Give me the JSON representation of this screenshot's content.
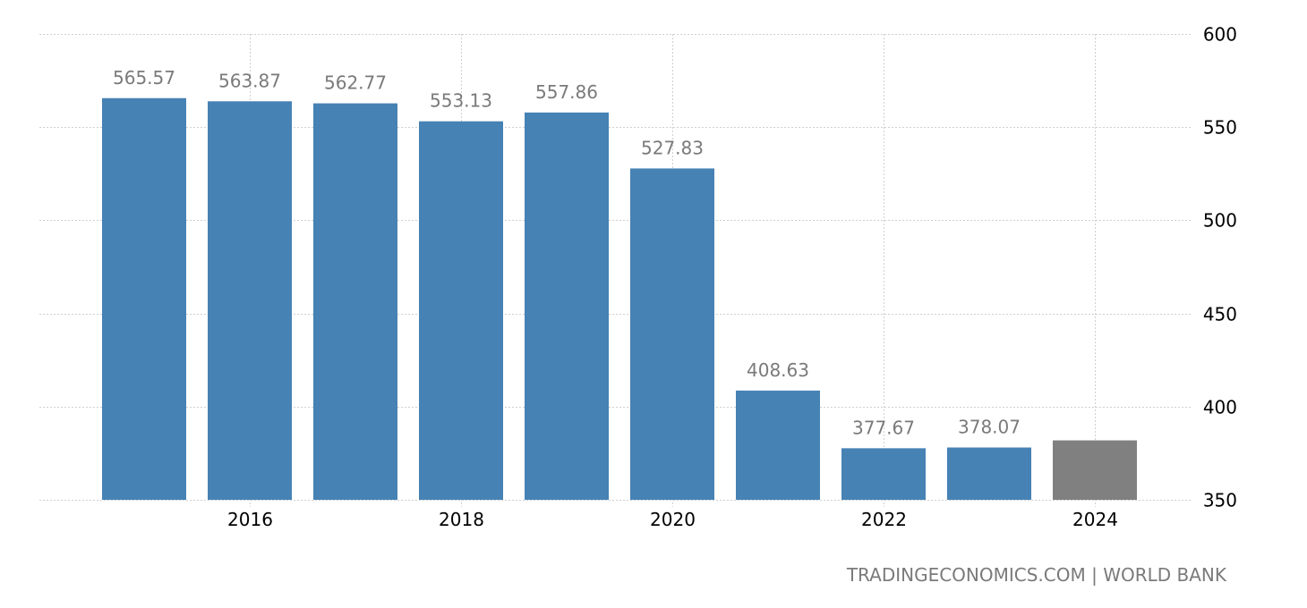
{
  "chart_data": {
    "type": "bar",
    "categories": [
      "2015",
      "2016",
      "2017",
      "2018",
      "2019",
      "2020",
      "2021",
      "2022",
      "2023",
      "2024"
    ],
    "values": [
      565.57,
      563.87,
      562.77,
      553.13,
      557.86,
      527.83,
      408.63,
      377.67,
      378.07,
      381.9
    ],
    "data_labels": [
      "565.57",
      "563.87",
      "562.77",
      "553.13",
      "557.86",
      "527.83",
      "408.63",
      "377.67",
      "378.07",
      ""
    ],
    "bar_colors": [
      "#4682b4",
      "#4682b4",
      "#4682b4",
      "#4682b4",
      "#4682b4",
      "#4682b4",
      "#4682b4",
      "#4682b4",
      "#4682b4",
      "#808080"
    ],
    "x_tick_labels": [
      "2016",
      "2018",
      "2020",
      "2022",
      "2024"
    ],
    "y_ticks": [
      350,
      400,
      450,
      500,
      550,
      600
    ],
    "ylim": [
      350,
      600
    ],
    "y_axis_position": "right",
    "grid": true,
    "title": "",
    "xlabel": "",
    "ylabel": ""
  },
  "source": "TRADINGECONOMICS.COM | WORLD BANK"
}
